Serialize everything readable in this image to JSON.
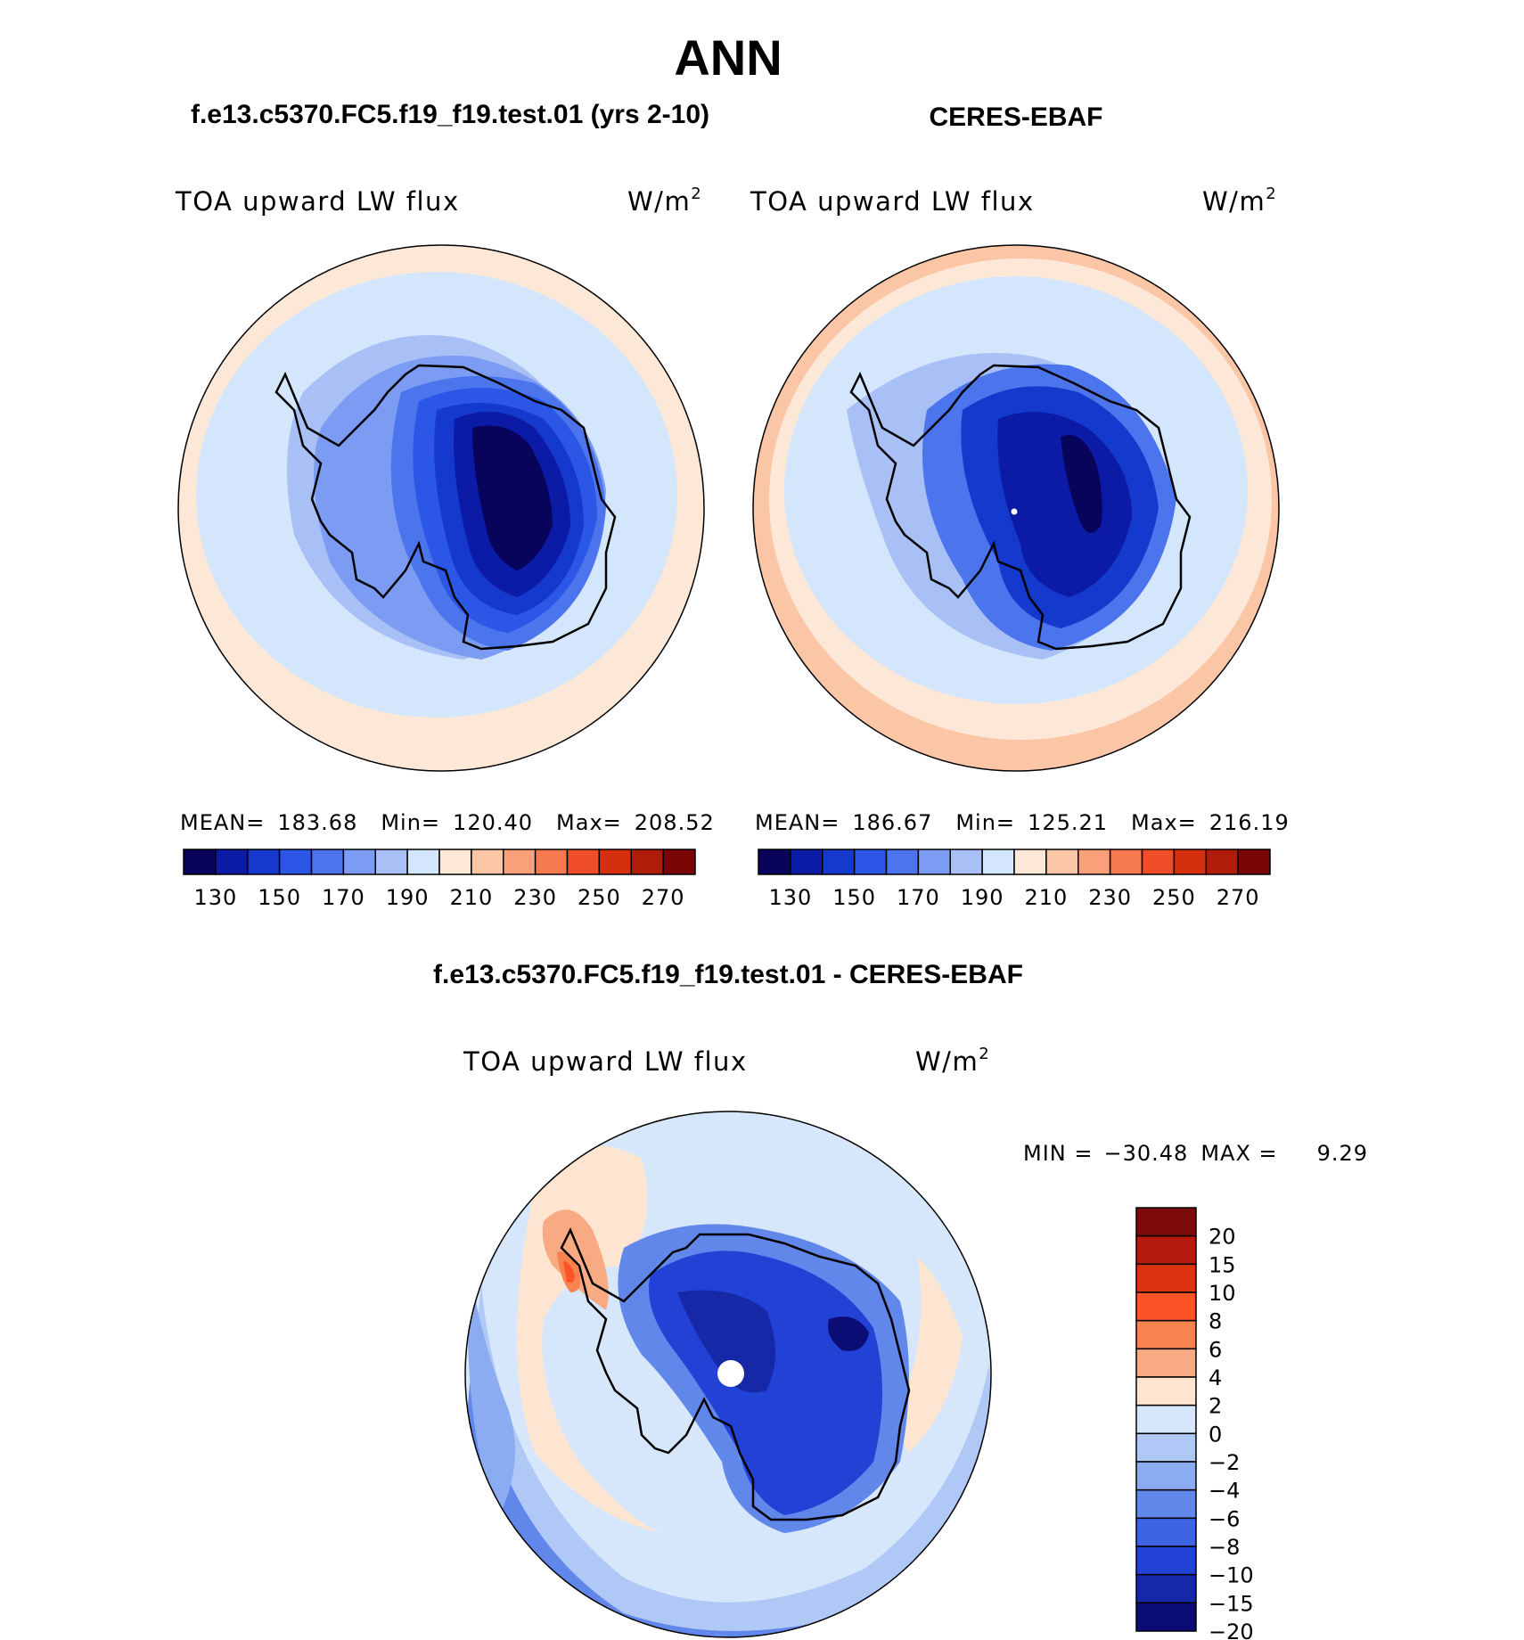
{
  "figure": {
    "season": "ANN",
    "left_title": "f.e13.c5370.FC5.f19_f19.test.01 (yrs 2-10)",
    "right_title": "CERES-EBAF",
    "diff_title": "f.e13.c5370.FC5.f19_f19.test.01 - CERES-EBAF"
  },
  "panels": [
    {
      "name": "model",
      "variable": "TOA upward LW flux",
      "units": "W/m",
      "units_exp": "2",
      "stats": {
        "mean_label": "MEAN=",
        "mean": "183.68",
        "min_label": "Min=",
        "min": "120.40",
        "max_label": "Max=",
        "max": "208.52"
      }
    },
    {
      "name": "obs",
      "variable": "TOA upward LW flux",
      "units": "W/m",
      "units_exp": "2",
      "stats": {
        "mean_label": "MEAN=",
        "mean": "186.67",
        "min_label": "Min=",
        "min": "125.21",
        "max_label": "Max=",
        "max": "216.19"
      }
    }
  ],
  "diff_panel": {
    "variable": "TOA upward LW flux",
    "units": "W/m",
    "units_exp": "2",
    "minmax": {
      "min_label": "MIN =",
      "min": "−30.48",
      "max_label": "MAX =",
      "max": "9.29"
    }
  },
  "chart_data": [
    {
      "type": "heatmap",
      "projection": "south-polar-stereographic",
      "title": "f.e13.c5370.FC5.f19_f19.test.01 (yrs 2-10)",
      "subtitle": "TOA upward LW flux",
      "units": "W/m2",
      "mean": 183.68,
      "min": 120.4,
      "max": 208.52,
      "colorbar": {
        "levels": [
          130,
          140,
          150,
          160,
          170,
          180,
          190,
          200,
          210,
          220,
          230,
          240,
          250,
          260,
          270
        ],
        "tick_labels": [
          "130",
          "150",
          "170",
          "190",
          "210",
          "230",
          "250",
          "270"
        ],
        "colors": [
          "#08045c",
          "#0b1ba6",
          "#1539cc",
          "#2b56e6",
          "#4b74ed",
          "#7b9cf2",
          "#a8c0f6",
          "#d4e6fc",
          "#fde8d8",
          "#fbc6a6",
          "#f9a07a",
          "#f77a4e",
          "#f04e28",
          "#d4300f",
          "#b01c0a",
          "#7a0507"
        ]
      },
      "regions": [
        {
          "region": "outer ring",
          "value_range": "200-210"
        },
        {
          "region": "southern ocean",
          "value_range": "190-200"
        },
        {
          "region": "coast",
          "value_range": "170-190"
        },
        {
          "region": "east antarctic plateau",
          "value_range": "120-140"
        }
      ]
    },
    {
      "type": "heatmap",
      "projection": "south-polar-stereographic",
      "title": "CERES-EBAF",
      "subtitle": "TOA upward LW flux",
      "units": "W/m2",
      "mean": 186.67,
      "min": 125.21,
      "max": 216.19,
      "colorbar": {
        "levels": [
          130,
          140,
          150,
          160,
          170,
          180,
          190,
          200,
          210,
          220,
          230,
          240,
          250,
          260,
          270
        ],
        "tick_labels": [
          "130",
          "150",
          "170",
          "190",
          "210",
          "230",
          "250",
          "270"
        ],
        "colors": [
          "#08045c",
          "#0b1ba6",
          "#1539cc",
          "#2b56e6",
          "#4b74ed",
          "#7b9cf2",
          "#a8c0f6",
          "#d4e6fc",
          "#fde8d8",
          "#fbc6a6",
          "#f9a07a",
          "#f77a4e",
          "#f04e28",
          "#d4300f",
          "#b01c0a",
          "#7a0507"
        ]
      },
      "regions": [
        {
          "region": "outer ring",
          "value_range": "200-220"
        },
        {
          "region": "southern ocean",
          "value_range": "190-200"
        },
        {
          "region": "coast",
          "value_range": "170-190"
        },
        {
          "region": "east antarctic plateau",
          "value_range": "120-140"
        }
      ]
    },
    {
      "type": "heatmap",
      "projection": "south-polar-stereographic",
      "title": "f.e13.c5370.FC5.f19_f19.test.01 - CERES-EBAF",
      "subtitle": "TOA upward LW flux",
      "units": "W/m2",
      "min": -30.48,
      "max": 9.29,
      "colorbar": {
        "orientation": "vertical",
        "levels": [
          -20,
          -15,
          -10,
          -8,
          -6,
          -4,
          -2,
          0,
          2,
          4,
          6,
          8,
          10,
          15,
          20
        ],
        "tick_labels": [
          "20",
          "15",
          "10",
          "8",
          "6",
          "4",
          "2",
          "0",
          "−2",
          "−4",
          "−6",
          "−8",
          "−10",
          "−15",
          "−20"
        ],
        "colors": [
          "#7d0a0a",
          "#b51b0c",
          "#dc3311",
          "#fb5426",
          "#f9834f",
          "#f8ab82",
          "#fde5d2",
          "#d6e7fb",
          "#b0c8f6",
          "#8cacf1",
          "#6287eb",
          "#3e63e3",
          "#2242d6",
          "#1628a8",
          "#0b0c74"
        ]
      },
      "regions": [
        {
          "region": "antarctic peninsula",
          "value_range": "4-20"
        },
        {
          "region": "southern ocean",
          "value_range": "-4-2"
        },
        {
          "region": "antarctic interior",
          "value_range": "-30 to -8"
        }
      ]
    }
  ]
}
